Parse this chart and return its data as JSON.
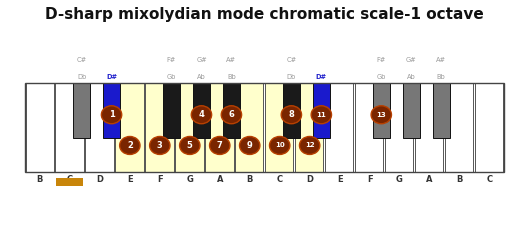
{
  "title": "D-sharp mixolydian mode chromatic scale-1 octave",
  "title_fontsize": 11,
  "bg": "#ffffff",
  "white_key_normal": "#ffffff",
  "white_key_highlight": "#ffffcc",
  "black_key_normal": "#1a1a1a",
  "black_key_blue": "#1a1acc",
  "black_key_gray": "#777777",
  "circle_fill": "#7a2500",
  "circle_edge": "#b84000",
  "circle_text": "#ffffff",
  "label_gray": "#999999",
  "label_blue": "#2222cc",
  "key_edge": "#555555",
  "sidebar_bg": "#111111",
  "sidebar_gold": "#c8850a",
  "sidebar_blue": "#2244cc",
  "orange_under": "#c8850a",
  "white_notes": [
    "B",
    "C",
    "D",
    "E",
    "F",
    "G",
    "A",
    "B",
    "C",
    "D",
    "E",
    "F",
    "G",
    "A",
    "B",
    "C"
  ],
  "highlighted_white_idx": [
    3,
    4,
    5,
    6,
    7,
    8,
    9
  ],
  "orange_under_idx": 1,
  "black_keys": [
    {
      "x": 1.6,
      "type": "gray",
      "top": "C#",
      "bot": "Db",
      "blue": false
    },
    {
      "x": 2.6,
      "type": "blue",
      "top": null,
      "bot": "D#",
      "blue": true
    },
    {
      "x": 4.6,
      "type": "black",
      "top": "F#",
      "bot": "Gb",
      "blue": false
    },
    {
      "x": 5.6,
      "type": "black",
      "top": "G#",
      "bot": "Ab",
      "blue": false
    },
    {
      "x": 6.6,
      "type": "black",
      "top": "A#",
      "bot": "Bb",
      "blue": false
    },
    {
      "x": 8.6,
      "type": "black",
      "top": "C#",
      "bot": "Db",
      "blue": false
    },
    {
      "x": 9.6,
      "type": "blue",
      "top": null,
      "bot": "D#",
      "blue": true
    },
    {
      "x": 11.6,
      "type": "gray",
      "top": "F#",
      "bot": "Gb",
      "blue": false
    },
    {
      "x": 12.6,
      "type": "gray",
      "top": "G#",
      "bot": "Ab",
      "blue": false
    },
    {
      "x": 13.6,
      "type": "gray",
      "top": "A#",
      "bot": "Bb",
      "blue": false
    }
  ],
  "black_circles": [
    {
      "xi": 1,
      "label": "1"
    },
    {
      "xi": 3,
      "label": "4"
    },
    {
      "xi": 4,
      "label": "6"
    },
    {
      "xi": 5,
      "label": "8"
    },
    {
      "xi": 6,
      "label": "11"
    },
    {
      "xi": 7,
      "label": "13"
    }
  ],
  "white_circles": [
    {
      "wi": 3,
      "label": "2"
    },
    {
      "wi": 4,
      "label": "3"
    },
    {
      "wi": 5,
      "label": "5"
    },
    {
      "wi": 6,
      "label": "7"
    },
    {
      "wi": 7,
      "label": "9"
    },
    {
      "wi": 8,
      "label": "10"
    },
    {
      "wi": 9,
      "label": "12"
    }
  ]
}
